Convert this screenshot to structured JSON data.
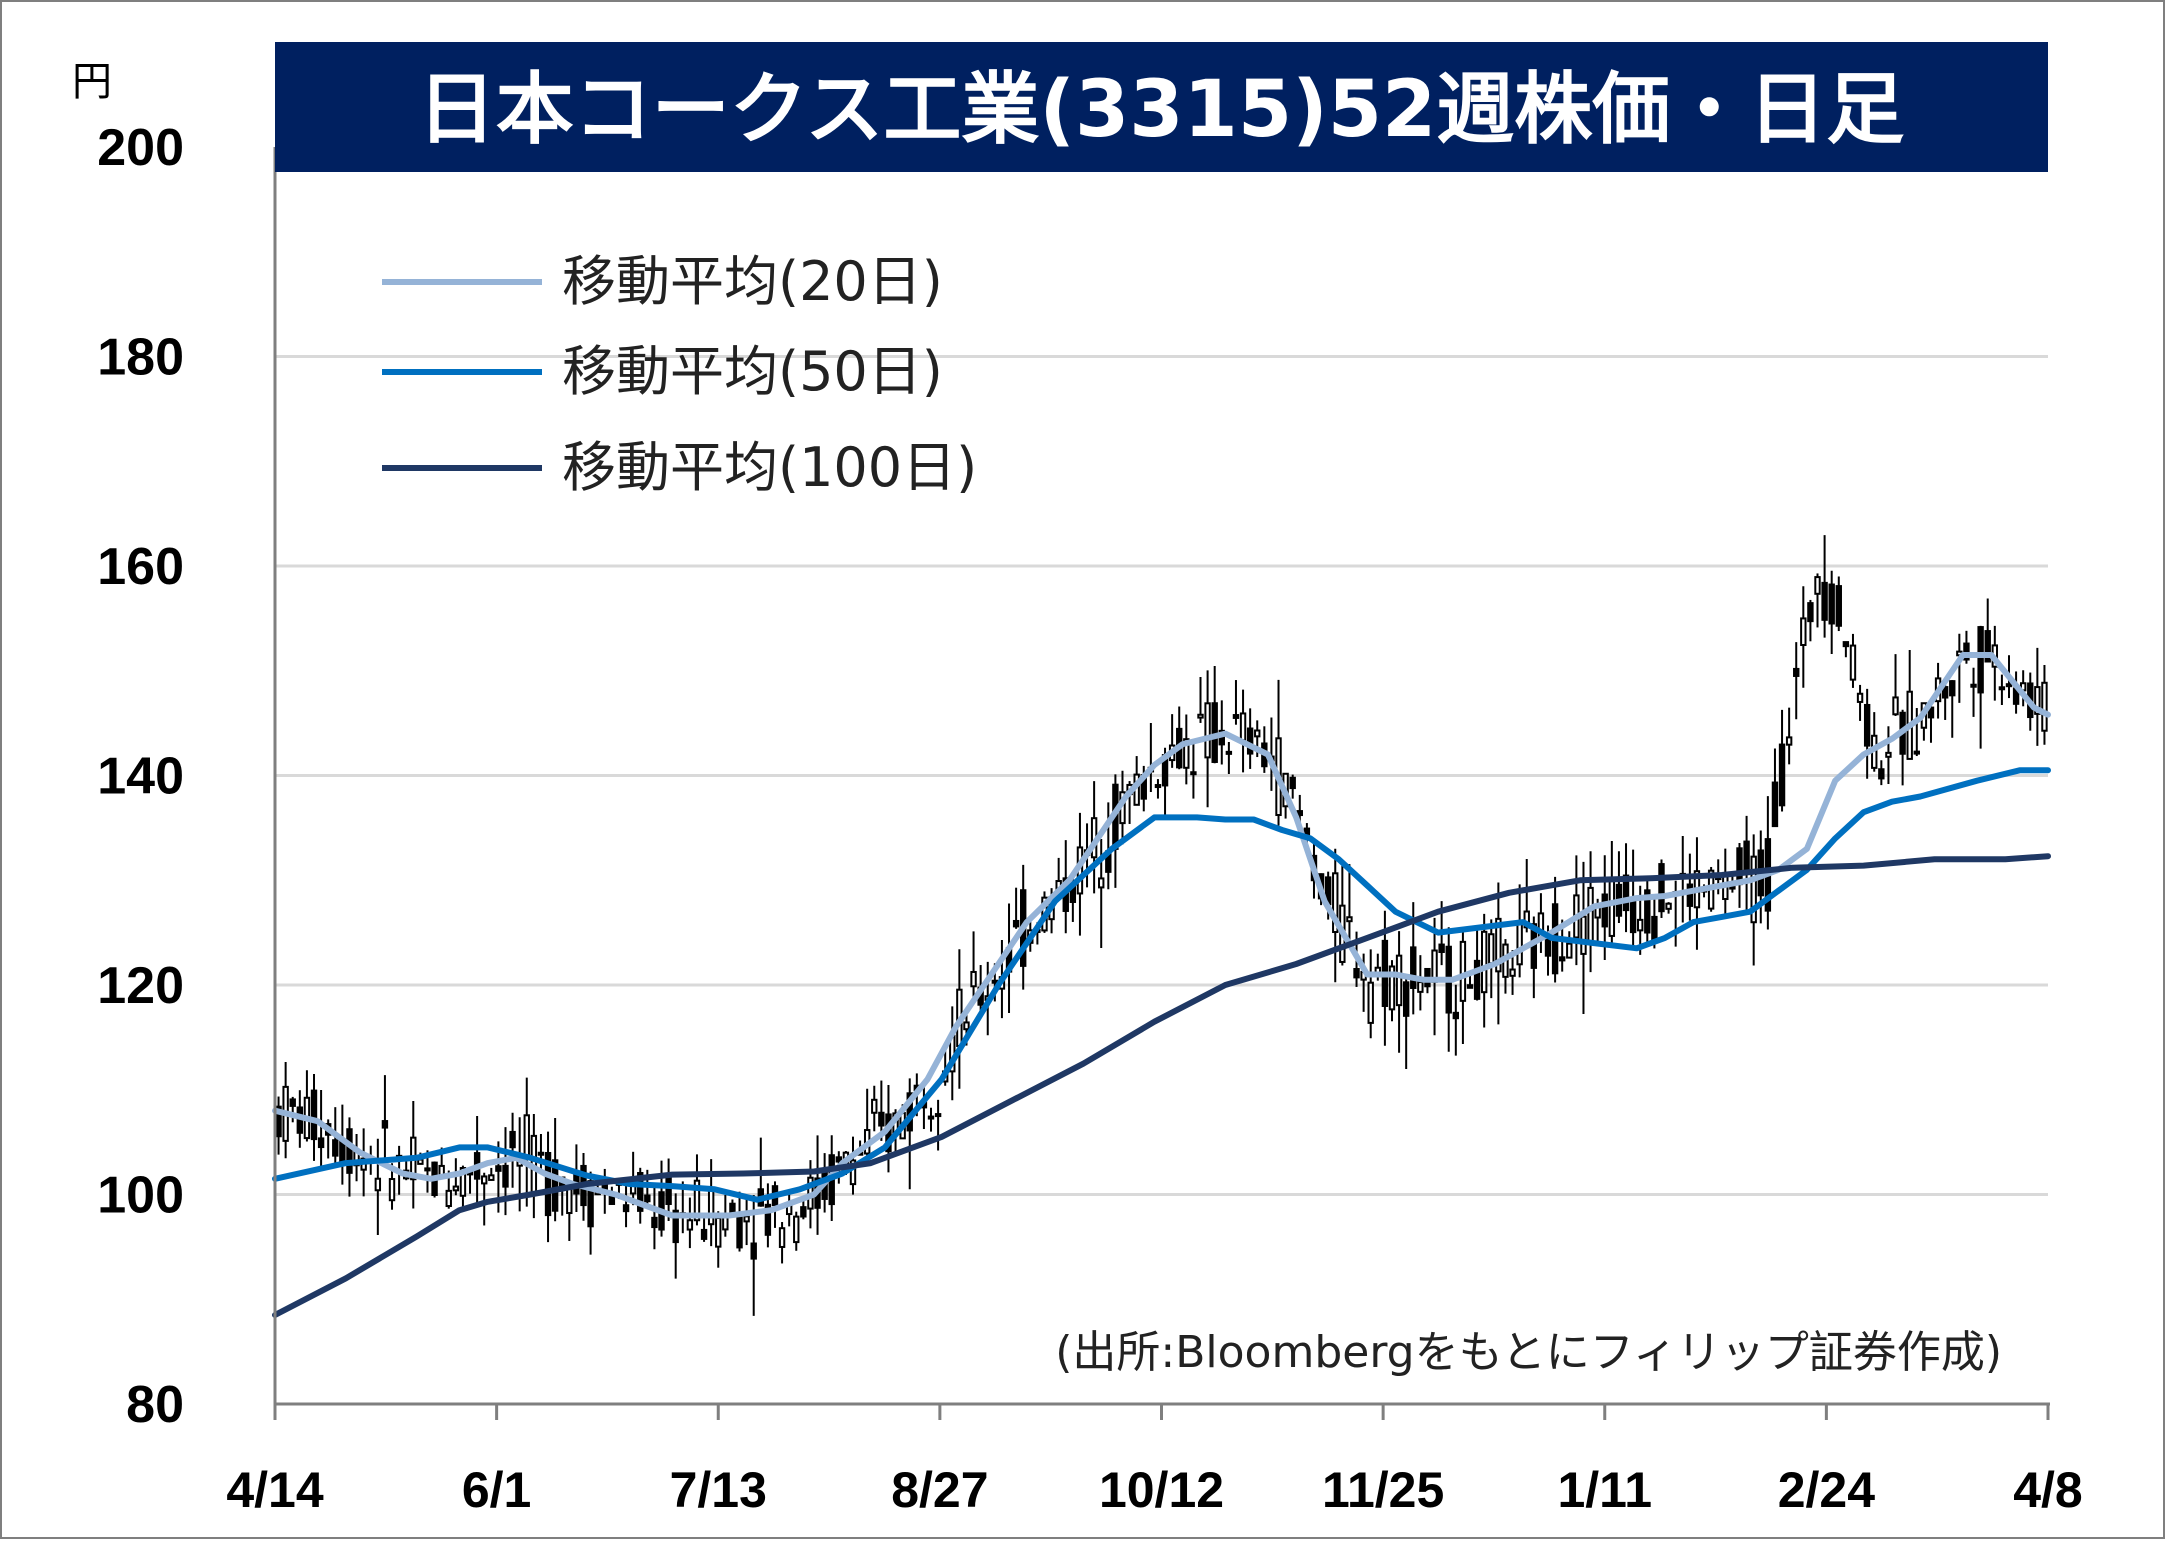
{
  "chart_data": {
    "type": "candlestick",
    "title": "日本コークス工業(3315)52週株価・日足",
    "unit": "円",
    "source": "(出所:Bloombergをもとにフィリップ証券作成)",
    "ylim": [
      80,
      200
    ],
    "y_ticks": [
      80,
      100,
      120,
      140,
      160,
      180,
      200
    ],
    "x_tick_labels": [
      "4/14",
      "6/1",
      "7/13",
      "8/27",
      "10/12",
      "11/25",
      "1/11",
      "2/24",
      "4/8"
    ],
    "grid": true,
    "legend_position": "top-left",
    "legend": [
      {
        "name": "移動平均(20日)",
        "color": "#95b3d7"
      },
      {
        "name": "移動平均(50日)",
        "color": "#0070c0"
      },
      {
        "name": "移動平均(100日)",
        "color": "#1f3864"
      }
    ],
    "series": [
      {
        "name": "移動平均(20日)",
        "x": [
          0,
          6,
          12,
          18,
          22,
          26,
          30,
          34,
          38,
          42,
          48,
          52,
          56,
          60,
          64,
          70,
          76,
          80,
          86,
          92,
          96,
          100,
          106,
          112,
          116,
          120,
          124,
          128,
          134,
          140,
          144,
          148,
          154,
          158,
          162,
          166,
          172,
          180,
          186,
          192,
          196,
          200,
          204,
          208,
          212,
          216,
          220,
          224,
          228,
          232,
          235,
          238,
          242,
          248,
          250
        ],
        "values": [
          108,
          107,
          104,
          102,
          101.5,
          102,
          103,
          103.5,
          102,
          101,
          100,
          99,
          98,
          98,
          98,
          98.5,
          100,
          103,
          106,
          111,
          116,
          120,
          126,
          130,
          134,
          138,
          141,
          143,
          144,
          142,
          136,
          128,
          121,
          121,
          120.5,
          120.5,
          122,
          125,
          127.5,
          128.3,
          128.5,
          129,
          129.5,
          130,
          131,
          133,
          139.5,
          142,
          143.5,
          145.5,
          148.5,
          151.5,
          151.5,
          146.5,
          145.8
        ]
      },
      {
        "name": "移動平均(50日)",
        "x": [
          0,
          10,
          20,
          26,
          30,
          36,
          44,
          50,
          56,
          62,
          68,
          74,
          80,
          86,
          94,
          102,
          110,
          118,
          124,
          130,
          134,
          138,
          142,
          146,
          150,
          154,
          158,
          164,
          170,
          176,
          180,
          186,
          192,
          196,
          200,
          204,
          208,
          212,
          216,
          220,
          224,
          228,
          232,
          240,
          246,
          250
        ],
        "values": [
          101.5,
          103,
          103.5,
          104.5,
          104.5,
          103.5,
          101.8,
          101,
          100.8,
          100.5,
          99.5,
          100.5,
          102,
          104.5,
          111,
          120,
          128,
          133,
          136,
          136,
          135.8,
          135.8,
          134.8,
          134,
          132,
          129.5,
          127,
          125,
          125.5,
          126,
          124.5,
          124,
          123.5,
          124.5,
          126,
          126.5,
          127,
          129,
          131,
          134,
          136.5,
          137.5,
          138,
          139.5,
          140.5,
          140.5
        ]
      },
      {
        "name": "移動平均(100日)",
        "x": [
          0,
          10,
          20,
          26,
          30,
          36,
          44,
          56,
          66,
          76,
          84,
          94,
          104,
          114,
          124,
          134,
          144,
          154,
          164,
          174,
          184,
          194,
          204,
          214,
          224,
          234,
          244,
          250
        ],
        "values": [
          88.5,
          92,
          96,
          98.5,
          99.3,
          100,
          101,
          101.9,
          102,
          102.2,
          103,
          105.5,
          109,
          112.5,
          116.5,
          120,
          122,
          124.5,
          127,
          128.8,
          130,
          130.2,
          130.5,
          131.2,
          131.4,
          132,
          132,
          132.3
        ]
      }
    ]
  }
}
